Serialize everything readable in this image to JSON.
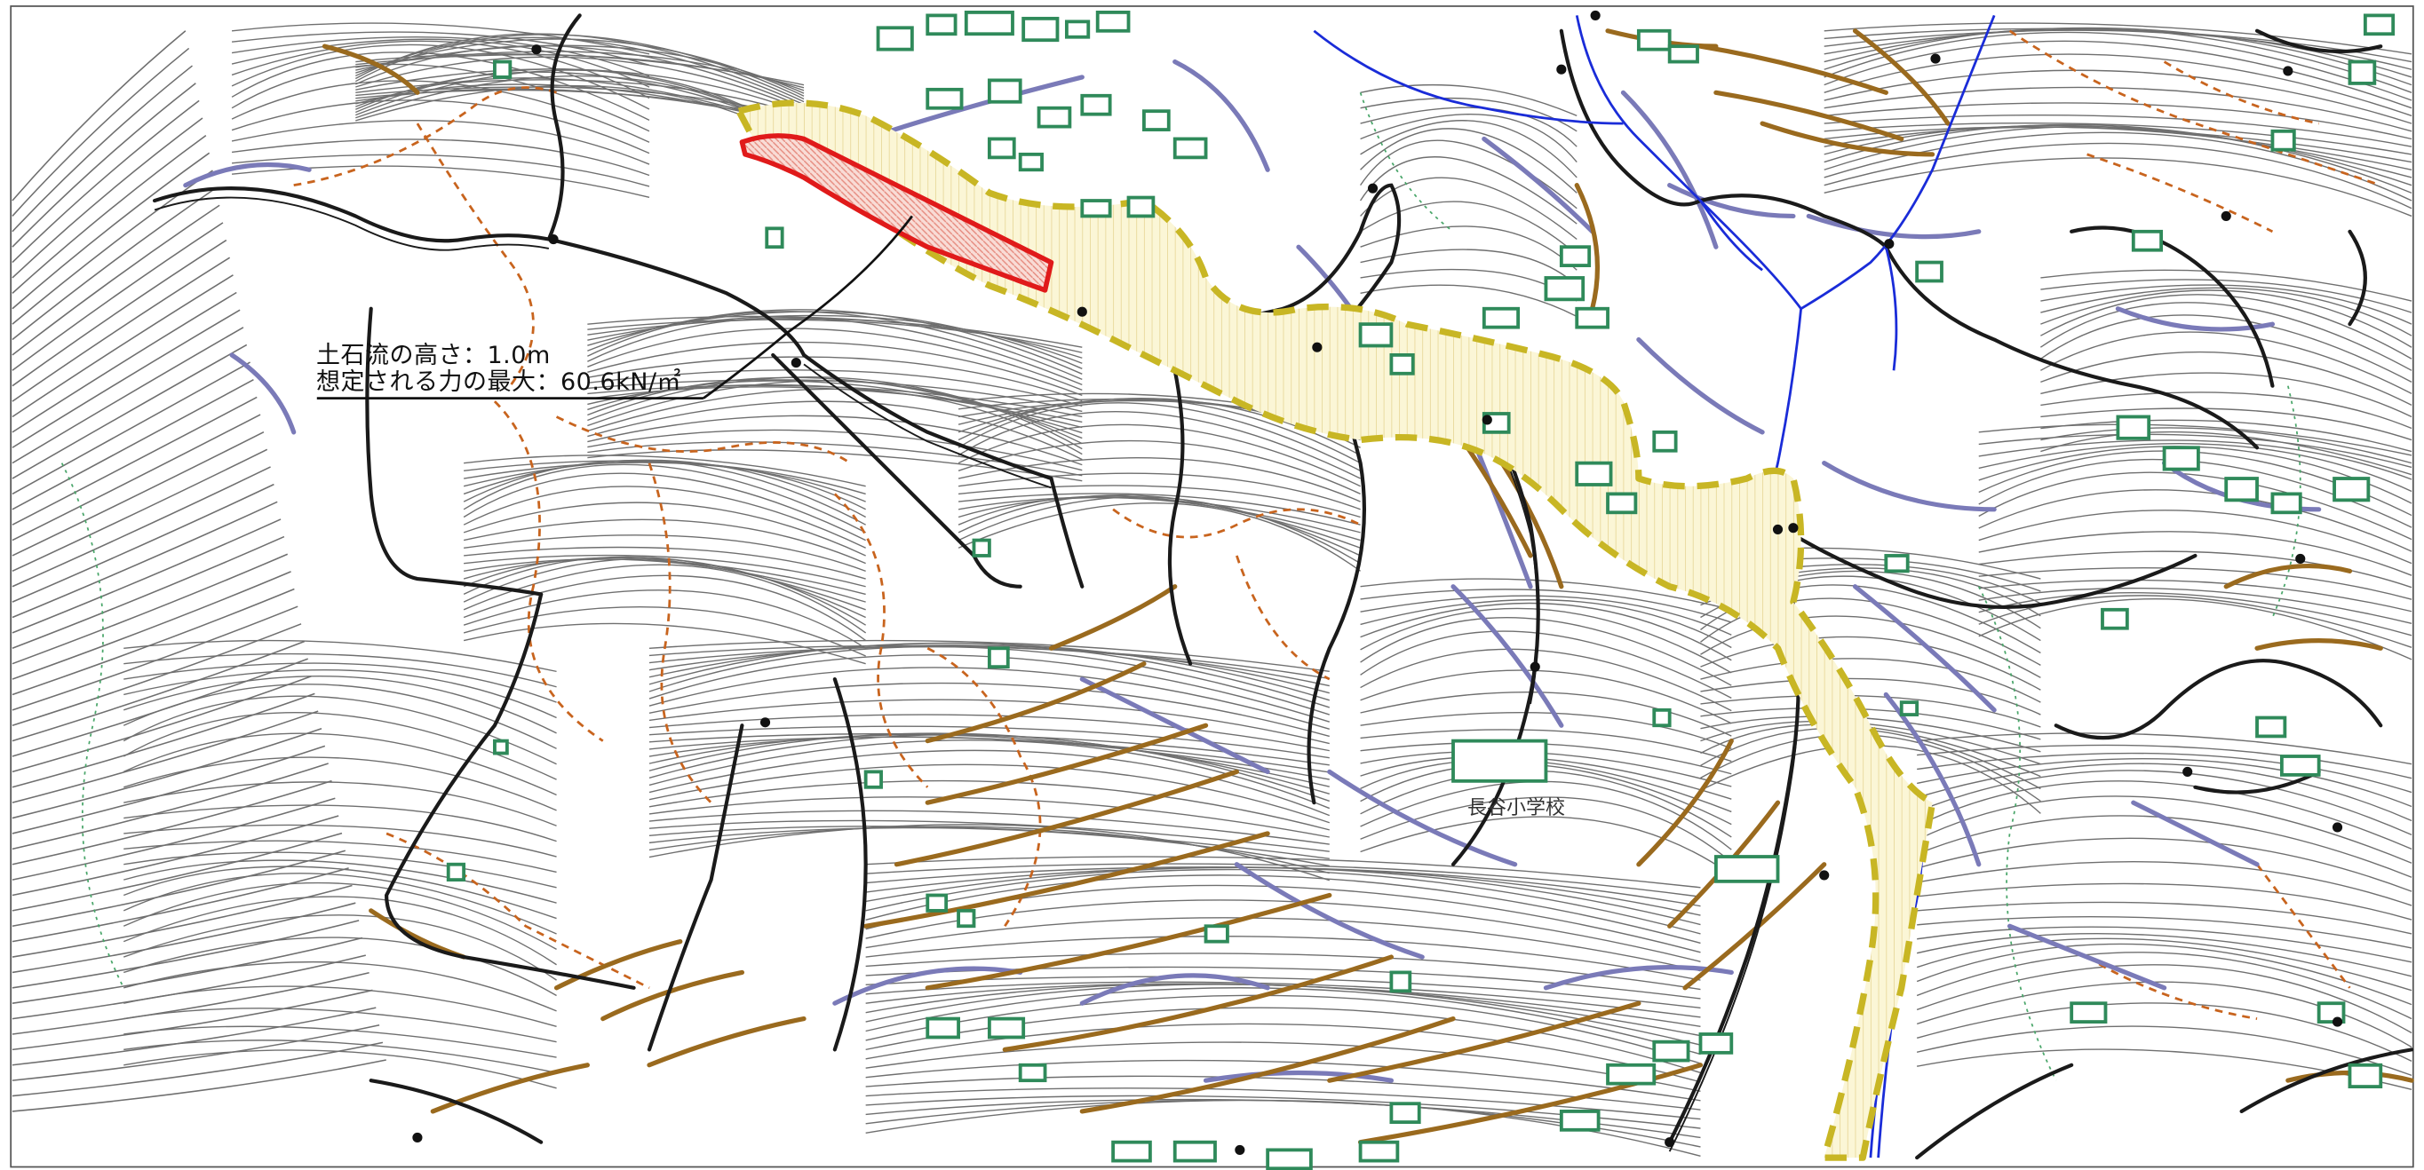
{
  "map": {
    "debris_flow": {
      "height_label": "土石流の高さ：1.0m",
      "force_label": "想定される力の最大：60.6kN/㎡"
    },
    "place_labels": {
      "school": "長谷小学校"
    },
    "legend_colors": {
      "contour": "#6f6f6f",
      "road": "#1a1a1a",
      "slope_lavender": "#7a7ab8",
      "slope_brown": "#9a6a1e",
      "boundary_orange": "#c8641e",
      "building": "#2f8a5a",
      "stream": "#1a2cd8",
      "hazard_zone_outline": "#c8b624",
      "hazard_zone_fill": "#fbf6d6",
      "special_zone_outline": "#e01a1a",
      "special_zone_fill": "#f6c8c0"
    }
  }
}
